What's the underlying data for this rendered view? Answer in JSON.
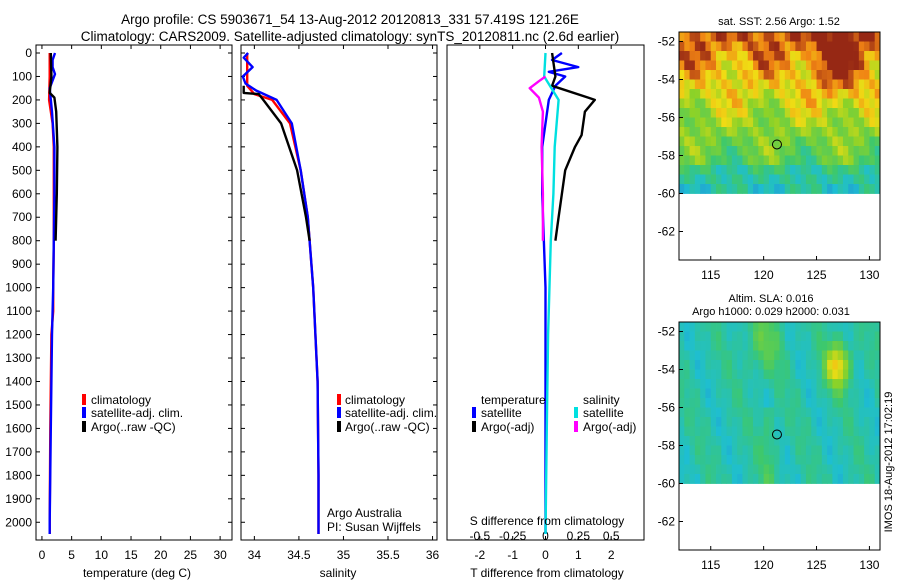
{
  "header": {
    "line1": "Argo profile: CS 5903671_54 13-Aug-2012 20120813_331 57.419S 121.26E",
    "line2": "Climatology: CARS2009. Satellite-adjusted climatology: synTS_20120811.nc (2.6d earlier)"
  },
  "colors": {
    "climatology": "#ff0000",
    "satellite": "#0000ff",
    "argo": "#000000",
    "satellite_diff_s": "#00e0e0",
    "argo_diff_s": "#ff00ff"
  },
  "panels": {
    "temperature": {
      "xlabel": "temperature (deg C)",
      "legend": [
        "climatology",
        "satellite-adj. clim.",
        "Argo(..raw -QC)"
      ]
    },
    "salinity": {
      "xlabel": "salinity",
      "legend": [
        "climatology",
        "satellite-adj. clim.",
        "Argo(..raw -QC)"
      ],
      "credit1": "Argo Australia",
      "credit2": "PI: Susan Wijffels"
    },
    "difference": {
      "xlabel": "T difference from climatology",
      "top_label": "S difference from climatology",
      "temp_heading": "temperature",
      "sal_heading": "salinity",
      "temp_items": [
        "satellite",
        "Argo(-adj)"
      ],
      "sal_items": [
        "satellite",
        "Argo(-adj)"
      ]
    },
    "sst_map": {
      "title": "sat. SST: 2.56 Argo: 1.52"
    },
    "sla_map": {
      "title1": "Altim. SLA: 0.016",
      "title2": "Argo h1000: 0.029 h2000: 0.031"
    }
  },
  "side_stamp": "IMOS 18-Aug-2012 17:02:19",
  "chart_data": [
    {
      "type": "line",
      "name": "temperature",
      "xlabel": "temperature (deg C)",
      "ylabel": "",
      "xlim": [
        -1,
        32
      ],
      "ylim": [
        2100,
        0
      ],
      "xticks": [
        0,
        5,
        10,
        15,
        20,
        25,
        30
      ],
      "yticks": [
        0,
        100,
        200,
        300,
        400,
        500,
        600,
        700,
        800,
        900,
        1000,
        1100,
        1200,
        1300,
        1400,
        1500,
        1600,
        1700,
        1800,
        1900,
        2000
      ],
      "series": [
        {
          "name": "climatology",
          "color": "#ff0000",
          "points": [
            [
              1.3,
              0
            ],
            [
              1.3,
              100
            ],
            [
              1.2,
              200
            ],
            [
              1.8,
              300
            ],
            [
              2.0,
              400
            ],
            [
              2.0,
              600
            ],
            [
              2.0,
              800
            ],
            [
              1.9,
              1000
            ],
            [
              1.9,
              1100
            ],
            [
              1.6,
              1200
            ],
            [
              1.4,
              1600
            ],
            [
              1.3,
              2000
            ],
            [
              1.3,
              2050
            ]
          ]
        },
        {
          "name": "satellite-adj. clim.",
          "color": "#0000ff",
          "points": [
            [
              2.2,
              0
            ],
            [
              1.8,
              30
            ],
            [
              1.8,
              60
            ],
            [
              2.2,
              90
            ],
            [
              1.3,
              150
            ],
            [
              1.7,
              250
            ],
            [
              2.1,
              400
            ],
            [
              2.1,
              600
            ],
            [
              2.0,
              800
            ],
            [
              1.9,
              1000
            ],
            [
              1.7,
              1200
            ],
            [
              1.5,
              1600
            ],
            [
              1.3,
              2000
            ],
            [
              1.3,
              2050
            ]
          ]
        },
        {
          "name": "Argo(..raw -QC)",
          "color": "#000000",
          "points": [
            [
              1.5,
              0
            ],
            [
              1.6,
              100
            ],
            [
              1.3,
              170
            ],
            [
              2.1,
              190
            ],
            [
              2.4,
              250
            ],
            [
              2.6,
              400
            ],
            [
              2.5,
              600
            ],
            [
              2.3,
              800
            ]
          ]
        }
      ]
    },
    {
      "type": "line",
      "name": "salinity",
      "xlabel": "salinity",
      "ylabel": "",
      "xlim": [
        33.85,
        36.05
      ],
      "ylim": [
        2100,
        0
      ],
      "xticks": [
        34,
        34.5,
        35,
        35.5,
        36
      ],
      "yticks": [
        0,
        100,
        200,
        300,
        400,
        500,
        600,
        700,
        800,
        900,
        1000,
        1100,
        1200,
        1300,
        1400,
        1500,
        1600,
        1700,
        1800,
        1900,
        2000
      ],
      "series": [
        {
          "name": "climatology",
          "color": "#ff0000",
          "points": [
            [
              33.92,
              0
            ],
            [
              33.92,
              140
            ],
            [
              34.0,
              175
            ],
            [
              34.2,
              200
            ],
            [
              34.4,
              300
            ],
            [
              34.52,
              500
            ],
            [
              34.6,
              700
            ],
            [
              34.66,
              1000
            ],
            [
              34.71,
              1400
            ],
            [
              34.72,
              1800
            ],
            [
              34.72,
              2050
            ]
          ]
        },
        {
          "name": "satellite-adj. clim.",
          "color": "#0000ff",
          "points": [
            [
              33.93,
              0
            ],
            [
              33.88,
              20
            ],
            [
              33.98,
              60
            ],
            [
              33.87,
              100
            ],
            [
              33.9,
              130
            ],
            [
              34.02,
              160
            ],
            [
              34.25,
              200
            ],
            [
              34.42,
              300
            ],
            [
              34.52,
              500
            ],
            [
              34.6,
              700
            ],
            [
              34.66,
              1000
            ],
            [
              34.71,
              1400
            ],
            [
              34.72,
              1800
            ],
            [
              34.72,
              2050
            ]
          ]
        },
        {
          "name": "Argo(..raw -QC)",
          "color": "#000000",
          "points": [
            [
              33.88,
              140
            ],
            [
              33.88,
              170
            ],
            [
              34.05,
              175
            ],
            [
              34.1,
              200
            ],
            [
              34.3,
              300
            ],
            [
              34.48,
              500
            ],
            [
              34.58,
              700
            ],
            [
              34.62,
              800
            ]
          ]
        }
      ]
    },
    {
      "type": "line",
      "name": "differences",
      "xlabel": "T difference from climatology",
      "top_label": "S difference from climatology",
      "xlim": [
        -3,
        3
      ],
      "ylim": [
        2100,
        0
      ],
      "xticks": [
        -2,
        -1,
        0,
        1,
        2
      ],
      "top_xlim": [
        -0.75,
        0.75
      ],
      "top_xticks": [
        -0.5,
        -0.25,
        0,
        0.25,
        0.5
      ],
      "series": [
        {
          "name": "temperature satellite",
          "color": "#0000ff",
          "axis": "T",
          "points": [
            [
              0.5,
              0
            ],
            [
              0.2,
              30
            ],
            [
              1.0,
              60
            ],
            [
              0.1,
              80
            ],
            [
              0.6,
              100
            ],
            [
              0.3,
              140
            ],
            [
              0.1,
              200
            ],
            [
              0.0,
              300
            ],
            [
              -0.1,
              400
            ],
            [
              -0.1,
              600
            ],
            [
              0.0,
              1000
            ],
            [
              0.0,
              2050
            ]
          ]
        },
        {
          "name": "temperature Argo(-adj)",
          "color": "#000000",
          "axis": "T",
          "points": [
            [
              0.2,
              0
            ],
            [
              0.3,
              100
            ],
            [
              0.2,
              140
            ],
            [
              1.3,
              190
            ],
            [
              1.5,
              200
            ],
            [
              1.2,
              250
            ],
            [
              1.1,
              350
            ],
            [
              0.9,
              400
            ],
            [
              0.6,
              500
            ],
            [
              0.4,
              700
            ],
            [
              0.3,
              800
            ]
          ]
        },
        {
          "name": "salinity satellite",
          "color": "#00e0e0",
          "axis": "S",
          "points": [
            [
              0.0,
              0
            ],
            [
              -0.01,
              100
            ],
            [
              0.1,
              200
            ],
            [
              0.07,
              400
            ],
            [
              0.06,
              600
            ],
            [
              0.04,
              800
            ],
            [
              0.02,
              1200
            ],
            [
              0.01,
              1600
            ],
            [
              0.0,
              2050
            ]
          ]
        },
        {
          "name": "salinity Argo(-adj)",
          "color": "#ff00ff",
          "axis": "S",
          "points": [
            [
              0.0,
              100
            ],
            [
              -0.05,
              120
            ],
            [
              -0.12,
              150
            ],
            [
              -0.05,
              190
            ],
            [
              -0.02,
              250
            ],
            [
              -0.03,
              400
            ],
            [
              -0.02,
              600
            ],
            [
              -0.02,
              800
            ]
          ]
        }
      ]
    },
    {
      "type": "heatmap",
      "name": "satellite SST map",
      "title": "sat. SST: 2.56 Argo: 1.52",
      "xlim": [
        112,
        131
      ],
      "ylim": [
        -63.5,
        -51.5
      ],
      "xticks": [
        115,
        120,
        125,
        130
      ],
      "yticks": [
        -52,
        -54,
        -56,
        -58,
        -60,
        -62
      ],
      "data_extent_south": -60,
      "argo_position": [
        121.26,
        -57.42
      ]
    },
    {
      "type": "heatmap",
      "name": "altimeter SLA map",
      "title": "Altim. SLA: 0.016 / Argo h1000: 0.029 h2000: 0.031",
      "xlim": [
        112,
        131
      ],
      "ylim": [
        -63.5,
        -51.5
      ],
      "xticks": [
        115,
        120,
        125,
        130
      ],
      "yticks": [
        -52,
        -54,
        -56,
        -58,
        -60,
        -62
      ],
      "data_extent_south": -60,
      "argo_position": [
        121.26,
        -57.42
      ]
    }
  ]
}
